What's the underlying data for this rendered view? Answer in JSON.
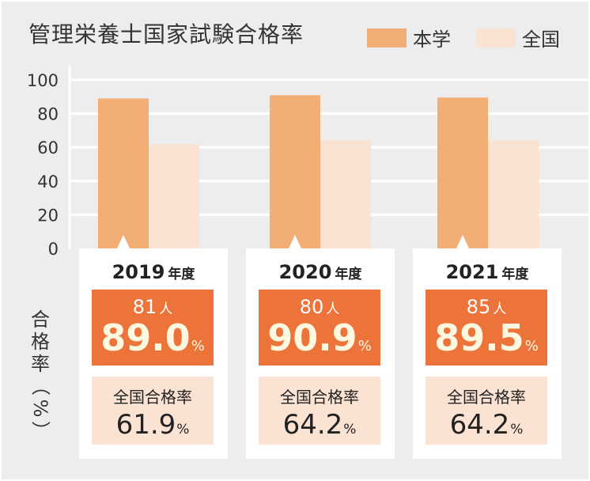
{
  "title": "管理栄養士国家試験合格率",
  "legend": [
    {
      "label": "本学",
      "color": "#f2ae74"
    },
    {
      "label": "全国",
      "color": "#fbe3d3"
    }
  ],
  "y_axis_title": [
    "合",
    "格",
    "率",
    "（",
    "%",
    "）"
  ],
  "year_unit": "年度",
  "count_unit": "人",
  "percent_sign": "%",
  "national_label": "全国合格率",
  "cards": [
    {
      "year": "2019",
      "count": "81",
      "school_rate": "89.0",
      "national_rate": "61.9"
    },
    {
      "year": "2020",
      "count": "80",
      "school_rate": "90.9",
      "national_rate": "64.2"
    },
    {
      "year": "2021",
      "count": "85",
      "school_rate": "89.5",
      "national_rate": "64.2"
    }
  ],
  "chart_data": {
    "type": "bar",
    "categories": [
      "2019",
      "2020",
      "2021"
    ],
    "series": [
      {
        "name": "本学",
        "values": [
          89.0,
          90.9,
          89.5
        ],
        "color": "#f2ae74"
      },
      {
        "name": "全国",
        "values": [
          61.9,
          64.2,
          64.2
        ],
        "color": "#fbe3d3"
      }
    ],
    "title": "管理栄養士国家試験合格率",
    "ylabel": "合格率（%）",
    "ylim": [
      0,
      100
    ],
    "yticks": [
      0,
      20,
      40,
      60,
      80,
      100
    ],
    "grid": true,
    "legend": "top-right"
  }
}
